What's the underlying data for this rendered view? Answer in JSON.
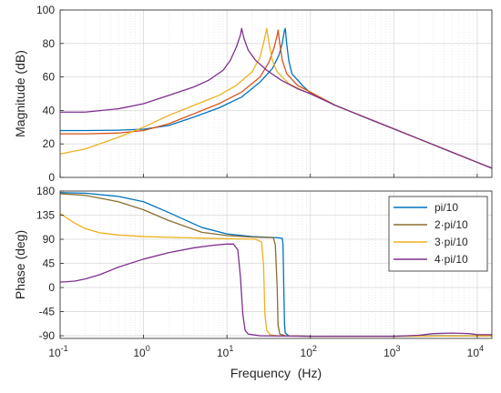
{
  "chart_data": [
    {
      "type": "line",
      "panel": "magnitude",
      "title": "",
      "xlabel": "",
      "ylabel": "Magnitude (dB)",
      "xscale": "log",
      "xlim": [
        0.1,
        15000
      ],
      "ylim": [
        0,
        100
      ],
      "yticks": [
        0,
        20,
        40,
        60,
        80,
        100
      ],
      "grid": true,
      "series": [
        {
          "name": "pi/10",
          "color": "#0072BD",
          "points": [
            [
              0.1,
              28
            ],
            [
              0.2,
              28
            ],
            [
              0.5,
              28.2
            ],
            [
              1,
              28.8
            ],
            [
              2,
              31
            ],
            [
              4,
              36
            ],
            [
              8,
              41.5
            ],
            [
              15,
              48
            ],
            [
              25,
              57
            ],
            [
              35,
              65
            ],
            [
              42,
              73
            ],
            [
              46,
              80
            ],
            [
              49,
              88
            ],
            [
              50,
              89
            ],
            [
              52,
              80
            ],
            [
              55,
              70
            ],
            [
              60,
              62
            ],
            [
              80,
              55
            ],
            [
              100,
              50.5
            ],
            [
              200,
              43
            ],
            [
              500,
              35
            ],
            [
              1000,
              29
            ],
            [
              2000,
              23
            ],
            [
              5000,
              15
            ],
            [
              10000,
              9
            ],
            [
              15000,
              5.5
            ]
          ]
        },
        {
          "name": "2·pi/10",
          "color": "#D95319",
          "points": [
            [
              0.1,
              26
            ],
            [
              0.2,
              26
            ],
            [
              0.5,
              26.5
            ],
            [
              1,
              28
            ],
            [
              2,
              32
            ],
            [
              4,
              38
            ],
            [
              8,
              44
            ],
            [
              15,
              51
            ],
            [
              25,
              60
            ],
            [
              32,
              69
            ],
            [
              37,
              78
            ],
            [
              40,
              85
            ],
            [
              41,
              88
            ],
            [
              43,
              80
            ],
            [
              46,
              70
            ],
            [
              52,
              62
            ],
            [
              70,
              55
            ],
            [
              100,
              51
            ],
            [
              200,
              43
            ],
            [
              500,
              35
            ],
            [
              1000,
              29
            ],
            [
              2000,
              23
            ],
            [
              5000,
              15
            ],
            [
              10000,
              9
            ],
            [
              15000,
              5.5
            ]
          ]
        },
        {
          "name": "3·pi/10",
          "color": "#EDB120",
          "points": [
            [
              0.1,
              14
            ],
            [
              0.2,
              17
            ],
            [
              0.5,
              24
            ],
            [
              1,
              30
            ],
            [
              2,
              37
            ],
            [
              4,
              43
            ],
            [
              8,
              49
            ],
            [
              13,
              55
            ],
            [
              20,
              63
            ],
            [
              25,
              72
            ],
            [
              28,
              82
            ],
            [
              30,
              89
            ],
            [
              32,
              80
            ],
            [
              35,
              70
            ],
            [
              40,
              63
            ],
            [
              55,
              56
            ],
            [
              80,
              52
            ],
            [
              100,
              50
            ],
            [
              200,
              43
            ],
            [
              500,
              35
            ],
            [
              1000,
              29
            ],
            [
              2000,
              23
            ],
            [
              5000,
              15
            ],
            [
              10000,
              9
            ],
            [
              15000,
              5.5
            ]
          ]
        },
        {
          "name": "4·pi/10",
          "color": "#7E2F8E",
          "points": [
            [
              0.1,
              39
            ],
            [
              0.2,
              39
            ],
            [
              0.5,
              41
            ],
            [
              1,
              44
            ],
            [
              2,
              49
            ],
            [
              4,
              54
            ],
            [
              6,
              58
            ],
            [
              9,
              64
            ],
            [
              11,
              70
            ],
            [
              13,
              78
            ],
            [
              14.5,
              85
            ],
            [
              15,
              89
            ],
            [
              16,
              83
            ],
            [
              18,
              76
            ],
            [
              22,
              70
            ],
            [
              30,
              64
            ],
            [
              45,
              58
            ],
            [
              70,
              53
            ],
            [
              100,
              50
            ],
            [
              200,
              43
            ],
            [
              500,
              35
            ],
            [
              1000,
              29
            ],
            [
              2000,
              23
            ],
            [
              5000,
              15
            ],
            [
              10000,
              9
            ],
            [
              15000,
              5.5
            ]
          ]
        }
      ]
    },
    {
      "type": "line",
      "panel": "phase",
      "title": "",
      "xlabel": "Frequency  (Hz)",
      "ylabel": "Phase (deg)",
      "xscale": "log",
      "xlim": [
        0.1,
        15000
      ],
      "ylim": [
        -95,
        180
      ],
      "yticks": [
        -90,
        -45,
        0,
        45,
        90,
        135,
        180
      ],
      "xticks": [
        0.1,
        1,
        10,
        100,
        1000,
        10000
      ],
      "xtick_labels": [
        [
          "10",
          "-1"
        ],
        [
          "10",
          "0"
        ],
        [
          "10",
          "1"
        ],
        [
          "10",
          "2"
        ],
        [
          "10",
          "3"
        ],
        [
          "10",
          "4"
        ]
      ],
      "grid": true,
      "legend": "top-right",
      "series": [
        {
          "name": "pi/10",
          "color": "#0072BD",
          "points": [
            [
              0.1,
              177
            ],
            [
              0.2,
              176
            ],
            [
              0.5,
              170
            ],
            [
              1,
              160
            ],
            [
              2,
              140
            ],
            [
              5,
              112
            ],
            [
              10,
              100
            ],
            [
              20,
              95
            ],
            [
              40,
              93
            ],
            [
              46,
              92
            ],
            [
              47,
              80
            ],
            [
              48,
              0
            ],
            [
              49,
              -70
            ],
            [
              50,
              -85
            ],
            [
              55,
              -90
            ],
            [
              100,
              -91
            ],
            [
              1000,
              -91
            ],
            [
              3000,
              -90
            ],
            [
              15000,
              -90
            ]
          ]
        },
        {
          "name": "2·pi/10",
          "color": "#8C6D31",
          "points": [
            [
              0.1,
              175
            ],
            [
              0.2,
              172
            ],
            [
              0.5,
              160
            ],
            [
              1,
              145
            ],
            [
              2,
              125
            ],
            [
              5,
              103
            ],
            [
              10,
              97
            ],
            [
              20,
              94
            ],
            [
              36,
              93
            ],
            [
              38,
              80
            ],
            [
              40,
              0
            ],
            [
              41,
              -70
            ],
            [
              43,
              -87
            ],
            [
              50,
              -90
            ],
            [
              100,
              -91
            ],
            [
              1000,
              -91
            ],
            [
              15000,
              -90
            ]
          ]
        },
        {
          "name": "3·pi/10",
          "color": "#EDB120",
          "points": [
            [
              0.1,
              138
            ],
            [
              0.15,
              120
            ],
            [
              0.2,
              110
            ],
            [
              0.3,
              102
            ],
            [
              0.5,
              98
            ],
            [
              1,
              95
            ],
            [
              3,
              93
            ],
            [
              10,
              91
            ],
            [
              22,
              90
            ],
            [
              26,
              85
            ],
            [
              27.5,
              40
            ],
            [
              28.5,
              -50
            ],
            [
              30,
              -80
            ],
            [
              33,
              -88
            ],
            [
              40,
              -90
            ],
            [
              100,
              -91
            ],
            [
              1000,
              -91
            ],
            [
              15000,
              -90
            ]
          ]
        },
        {
          "name": "4·pi/10",
          "color": "#7E2F8E",
          "points": [
            [
              0.1,
              10
            ],
            [
              0.15,
              12
            ],
            [
              0.2,
              16
            ],
            [
              0.3,
              24
            ],
            [
              0.5,
              38
            ],
            [
              1,
              53
            ],
            [
              2,
              65
            ],
            [
              4,
              74
            ],
            [
              7,
              79
            ],
            [
              10,
              81
            ],
            [
              12,
              81
            ],
            [
              13.5,
              70
            ],
            [
              14.5,
              20
            ],
            [
              15.5,
              -50
            ],
            [
              16.5,
              -80
            ],
            [
              18,
              -87
            ],
            [
              25,
              -90
            ],
            [
              100,
              -91
            ],
            [
              1000,
              -91
            ],
            [
              2000,
              -89
            ],
            [
              3000,
              -86
            ],
            [
              5000,
              -85
            ],
            [
              8000,
              -86
            ],
            [
              10000,
              -88
            ],
            [
              15000,
              -88
            ]
          ]
        }
      ]
    }
  ]
}
